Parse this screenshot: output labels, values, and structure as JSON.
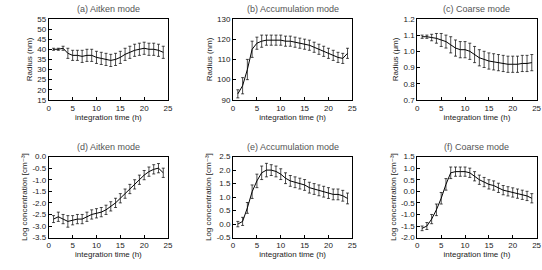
{
  "chart_data": [
    {
      "type": "line",
      "title": "(a) Aitken mode",
      "x_label": "integration time (h)",
      "y_label": "Radius (nm)",
      "color": "#000000",
      "x": [
        1,
        2,
        3,
        4,
        5,
        6,
        7,
        8,
        9,
        10,
        11,
        12,
        13,
        14,
        15,
        16,
        17,
        18,
        19,
        20,
        21,
        22,
        23,
        24
      ],
      "values": [
        40,
        40,
        40.5,
        38,
        37,
        37,
        36.5,
        37,
        37,
        36,
        35.5,
        35,
        34.5,
        35,
        36,
        37.5,
        38.5,
        39.5,
        40,
        40.5,
        40,
        40,
        39.5,
        38.5
      ],
      "errors": [
        0.5,
        0.5,
        1,
        2.5,
        2.5,
        2.5,
        3,
        3,
        3,
        3,
        3,
        3,
        3,
        3,
        3,
        3,
        3,
        3,
        3,
        3,
        3,
        3,
        3,
        3
      ],
      "xlim": [
        0,
        25
      ],
      "xticks": [
        0,
        5,
        10,
        15,
        20,
        25
      ],
      "ylim": [
        15,
        55
      ],
      "yticks": [
        15,
        20,
        25,
        30,
        35,
        40,
        45,
        50,
        55
      ]
    },
    {
      "type": "line",
      "title": "(b) Accumulation mode",
      "x_label": "integration time (h)",
      "y_label": "Radius (nm)",
      "color": "#000000",
      "x": [
        1,
        2,
        3,
        4,
        5,
        6,
        7,
        8,
        9,
        10,
        11,
        12,
        13,
        14,
        15,
        16,
        17,
        18,
        19,
        20,
        21,
        22,
        23,
        24
      ],
      "values": [
        93,
        97,
        105,
        115,
        118,
        119,
        119.5,
        119.5,
        119.5,
        119.5,
        119,
        119,
        118.5,
        118,
        117.5,
        117,
        116,
        115,
        114,
        113,
        112,
        111,
        110.5,
        113
      ],
      "errors": [
        2,
        4,
        5,
        4,
        3,
        3,
        2.5,
        2.5,
        2.5,
        2.5,
        2.5,
        2.5,
        2.5,
        2.5,
        2.5,
        2.5,
        2.5,
        2.5,
        2.5,
        2.5,
        2.5,
        2.5,
        2.5,
        2.5
      ],
      "xlim": [
        0,
        25
      ],
      "xticks": [
        0,
        5,
        10,
        15,
        20,
        25
      ],
      "ylim": [
        90,
        130
      ],
      "yticks": [
        90,
        100,
        110,
        120,
        130
      ]
    },
    {
      "type": "line",
      "title": "(c) Coarse mode",
      "x_label": "integration time (h)",
      "y_label": "Radius (μm)",
      "color": "#000000",
      "x": [
        1,
        2,
        3,
        4,
        5,
        6,
        7,
        8,
        9,
        10,
        11,
        12,
        13,
        14,
        15,
        16,
        17,
        18,
        19,
        20,
        21,
        22,
        23,
        24
      ],
      "values": [
        1.09,
        1.09,
        1.085,
        1.08,
        1.07,
        1.06,
        1.04,
        1.02,
        1.01,
        1.01,
        1.0,
        0.98,
        0.96,
        0.95,
        0.94,
        0.935,
        0.93,
        0.925,
        0.92,
        0.92,
        0.92,
        0.925,
        0.925,
        0.93
      ],
      "errors": [
        0.01,
        0.01,
        0.02,
        0.03,
        0.04,
        0.04,
        0.05,
        0.05,
        0.05,
        0.05,
        0.05,
        0.05,
        0.05,
        0.05,
        0.05,
        0.05,
        0.05,
        0.05,
        0.05,
        0.05,
        0.05,
        0.05,
        0.05,
        0.05
      ],
      "xlim": [
        0,
        25
      ],
      "xticks": [
        0,
        5,
        10,
        15,
        20,
        25
      ],
      "ylim": [
        0.7,
        1.2
      ],
      "yticks": [
        0.7,
        0.8,
        0.9,
        {
          "value": 1.0,
          "label": "1.0"
        },
        1.1,
        1.2
      ]
    },
    {
      "type": "line",
      "title": "(d) Aitken mode",
      "x_label": "integration time (h)",
      "y_label": "Log concentration [cm⁻³]",
      "color": "#000000",
      "x": [
        1,
        2,
        3,
        4,
        5,
        6,
        7,
        8,
        9,
        10,
        11,
        12,
        13,
        14,
        15,
        16,
        17,
        18,
        19,
        20,
        21,
        22,
        23,
        24
      ],
      "values": [
        -2.7,
        -2.6,
        -2.7,
        -2.8,
        -2.75,
        -2.7,
        -2.7,
        -2.6,
        -2.5,
        -2.45,
        -2.4,
        -2.3,
        -2.15,
        -2.0,
        -1.8,
        -1.6,
        -1.4,
        -1.2,
        -1.0,
        -0.8,
        -0.65,
        -0.55,
        -0.5,
        -0.7
      ],
      "errors": [
        0.15,
        0.2,
        0.2,
        0.25,
        0.2,
        0.2,
        0.2,
        0.2,
        0.2,
        0.2,
        0.2,
        0.2,
        0.2,
        0.2,
        0.2,
        0.2,
        0.2,
        0.2,
        0.2,
        0.2,
        0.2,
        0.2,
        0.2,
        0.2
      ],
      "xlim": [
        0,
        25
      ],
      "xticks": [
        0,
        5,
        10,
        15,
        20,
        25
      ],
      "ylim": [
        -3.5,
        0
      ],
      "yticks": [
        -3.5,
        {
          "value": -3.0,
          "label": "-3.0"
        },
        -2.5,
        {
          "value": -2.0,
          "label": "-2.0"
        },
        -1.5,
        {
          "value": -1.0,
          "label": "-1.0"
        },
        -0.5,
        {
          "value": 0,
          "label": "0.0"
        }
      ]
    },
    {
      "type": "line",
      "title": "(e) Accumulation mode",
      "x_label": "integration time (h)",
      "y_label": "Log concentration [cm⁻³]",
      "color": "#000000",
      "x": [
        1,
        2,
        3,
        4,
        5,
        6,
        7,
        8,
        9,
        10,
        11,
        12,
        13,
        14,
        15,
        16,
        17,
        18,
        19,
        20,
        21,
        22,
        23,
        24
      ],
      "values": [
        0.0,
        0.1,
        0.6,
        1.2,
        1.6,
        1.9,
        2.0,
        2.0,
        1.95,
        1.85,
        1.7,
        1.6,
        1.55,
        1.5,
        1.45,
        1.35,
        1.3,
        1.25,
        1.2,
        1.15,
        1.1,
        1.1,
        1.05,
        0.95
      ],
      "errors": [
        0.1,
        0.15,
        0.2,
        0.25,
        0.25,
        0.25,
        0.25,
        0.2,
        0.2,
        0.2,
        0.2,
        0.2,
        0.2,
        0.2,
        0.2,
        0.2,
        0.2,
        0.2,
        0.2,
        0.2,
        0.2,
        0.2,
        0.2,
        0.2
      ],
      "xlim": [
        0,
        25
      ],
      "xticks": [
        0,
        5,
        10,
        15,
        20,
        25
      ],
      "ylim": [
        -0.5,
        2.5
      ],
      "yticks": [
        -0.5,
        {
          "value": 0,
          "label": "0.0"
        },
        0.5,
        {
          "value": 1.0,
          "label": "1.0"
        },
        1.5,
        {
          "value": 2.0,
          "label": "2.0"
        },
        2.5
      ]
    },
    {
      "type": "line",
      "title": "(f) Coarse mode",
      "x_label": "integration time (h)",
      "y_label": "Log concentration [cm⁻³]",
      "color": "#000000",
      "x": [
        1,
        2,
        3,
        4,
        5,
        6,
        7,
        8,
        9,
        10,
        11,
        12,
        13,
        14,
        15,
        16,
        17,
        18,
        19,
        20,
        21,
        22,
        23,
        24
      ],
      "values": [
        -1.6,
        -1.5,
        -1.2,
        -0.8,
        -0.3,
        0.3,
        0.8,
        0.85,
        0.85,
        0.85,
        0.8,
        0.65,
        0.5,
        0.4,
        0.3,
        0.25,
        0.15,
        0.05,
        0.0,
        -0.05,
        -0.1,
        -0.15,
        -0.2,
        -0.3
      ],
      "errors": [
        0.1,
        0.15,
        0.2,
        0.25,
        0.25,
        0.25,
        0.25,
        0.2,
        0.2,
        0.2,
        0.2,
        0.2,
        0.2,
        0.2,
        0.2,
        0.2,
        0.2,
        0.2,
        0.2,
        0.2,
        0.2,
        0.2,
        0.2,
        0.2
      ],
      "xlim": [
        0,
        25
      ],
      "xticks": [
        0,
        5,
        10,
        15,
        20,
        25
      ],
      "ylim": [
        -2.0,
        1.5
      ],
      "yticks": [
        {
          "value": -2.0,
          "label": "-2.0"
        },
        -1.5,
        {
          "value": -1.0,
          "label": "-1.0"
        },
        -0.5,
        {
          "value": 0,
          "label": "0.0"
        },
        0.5,
        {
          "value": 1.0,
          "label": "1.0"
        },
        1.5
      ]
    }
  ]
}
